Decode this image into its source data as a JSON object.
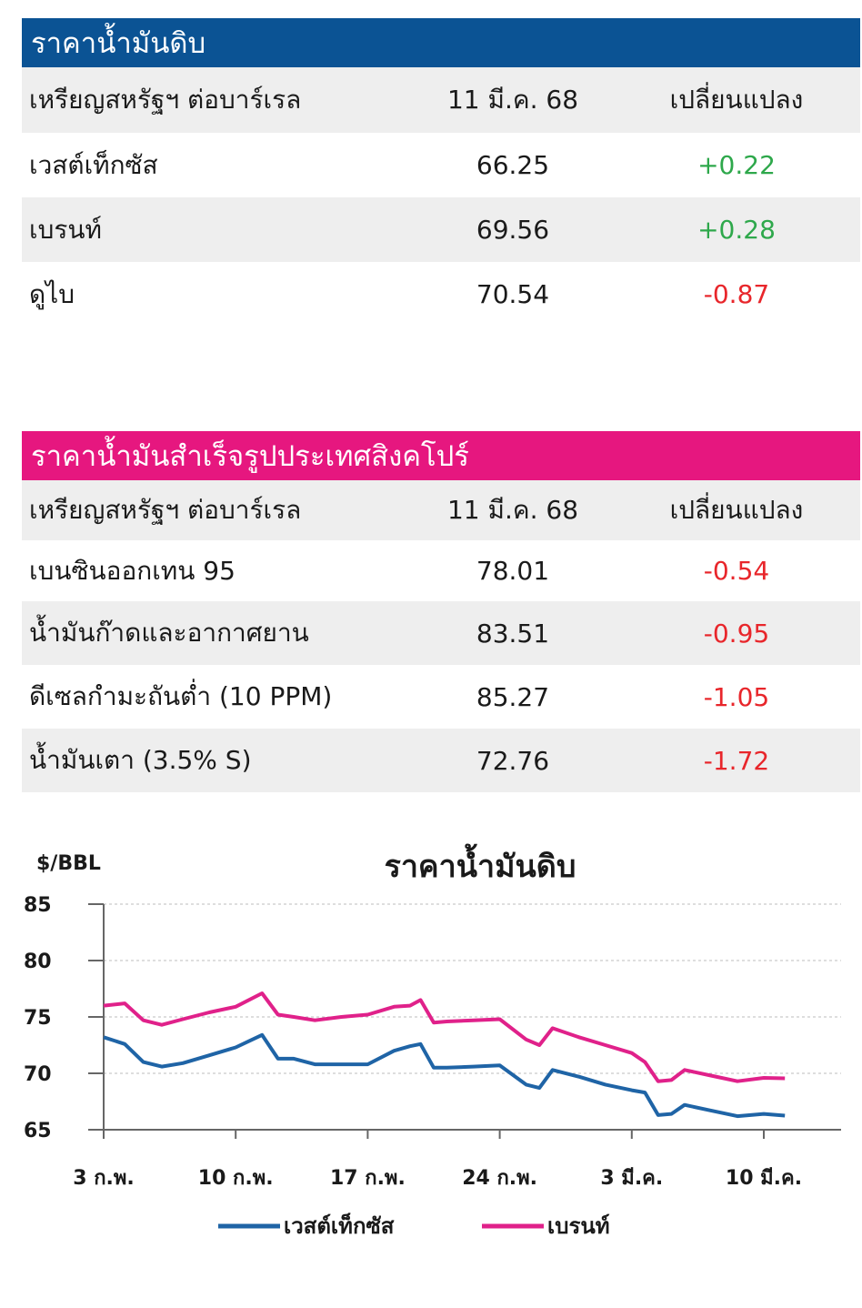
{
  "crude": {
    "header": "ราคาน้ำมันดิบ",
    "header_color": "#0b5394",
    "col_unit": "เหรียญสหรัฐฯ ต่อบาร์เรล",
    "col_date": "11 มี.ค. 68",
    "col_change": "เปลี่ยนแปลง",
    "rows": [
      {
        "name": "เวสต์เท็กซัส",
        "price": "66.25",
        "change": "+0.22",
        "dir": "pos"
      },
      {
        "name": "เบรนท์",
        "price": "69.56",
        "change": "+0.28",
        "dir": "pos"
      },
      {
        "name": "ดูไบ",
        "price": "70.54",
        "change": "-0.87",
        "dir": "neg"
      }
    ]
  },
  "refined": {
    "header": "ราคาน้ำมันสำเร็จรูปประเทศสิงคโปร์",
    "header_color": "#e6177f",
    "col_unit": "เหรียญสหรัฐฯ ต่อบาร์เรล",
    "col_date": "11 มี.ค. 68",
    "col_change": "เปลี่ยนแปลง",
    "rows": [
      {
        "name": "เบนซินออกเทน 95",
        "price": "78.01",
        "change": "-0.54",
        "dir": "neg"
      },
      {
        "name": "น้ำมันก๊าดและอากาศยาน",
        "price": "83.51",
        "change": "-0.95",
        "dir": "neg"
      },
      {
        "name": "ดีเซลกำมะถันต่ำ (10 PPM)",
        "price": "85.27",
        "change": "-1.05",
        "dir": "neg"
      },
      {
        "name": "น้ำมันเตา (3.5% S)",
        "price": "72.76",
        "change": "-1.72",
        "dir": "neg"
      }
    ]
  },
  "chart_data": {
    "type": "line",
    "title": "ราคาน้ำมันดิบ",
    "ylabel": "$/BBL",
    "ylim": [
      65,
      85
    ],
    "yticks": [
      85,
      80,
      75,
      70,
      65
    ],
    "grid": true,
    "xlim": [
      0,
      26
    ],
    "x_ticks": [
      {
        "i": 0,
        "label": "3 ก.พ."
      },
      {
        "i": 5,
        "label": "10 ก.พ."
      },
      {
        "i": 10,
        "label": "17 ก.พ."
      },
      {
        "i": 15,
        "label": "24 ก.พ."
      },
      {
        "i": 20,
        "label": "3 มี.ค."
      },
      {
        "i": 25,
        "label": "10 มี.ค."
      }
    ],
    "legend_position": "bottom",
    "series": [
      {
        "name": "เวสต์เท็กซัส",
        "color": "#1f64a6",
        "x": [
          0,
          0.8,
          1.5,
          2.2,
          3,
          4,
          5,
          6,
          6.6,
          7.2,
          8,
          9,
          10,
          11,
          11.6,
          12,
          12.5,
          13,
          14,
          15,
          16,
          16.5,
          17,
          18,
          19,
          20,
          20.5,
          21,
          21.5,
          22,
          23,
          24,
          25,
          25.8
        ],
        "values": [
          73.2,
          72.6,
          71.0,
          70.6,
          70.9,
          71.6,
          72.3,
          73.4,
          71.3,
          71.3,
          70.8,
          70.8,
          70.8,
          72.0,
          72.4,
          72.6,
          70.5,
          70.5,
          70.6,
          70.7,
          69.0,
          68.7,
          70.3,
          69.7,
          69.0,
          68.5,
          68.3,
          66.3,
          66.4,
          67.2,
          66.7,
          66.2,
          66.4,
          66.25
        ]
      },
      {
        "name": "เบรนท์",
        "color": "#e0218a",
        "x": [
          0,
          0.8,
          1.5,
          2.2,
          3,
          4,
          5,
          6,
          6.6,
          7.2,
          8,
          9,
          10,
          11,
          11.6,
          12,
          12.5,
          13,
          14,
          15,
          16,
          16.5,
          17,
          18,
          19,
          20,
          20.5,
          21,
          21.5,
          22,
          23,
          24,
          25,
          25.8
        ],
        "values": [
          76.0,
          76.2,
          74.7,
          74.3,
          74.8,
          75.4,
          75.9,
          77.1,
          75.2,
          75.0,
          74.7,
          75.0,
          75.2,
          75.9,
          76.0,
          76.5,
          74.5,
          74.6,
          74.7,
          74.8,
          73.0,
          72.5,
          74.0,
          73.2,
          72.5,
          71.8,
          71.0,
          69.3,
          69.4,
          70.3,
          69.8,
          69.3,
          69.6,
          69.56
        ]
      }
    ]
  }
}
